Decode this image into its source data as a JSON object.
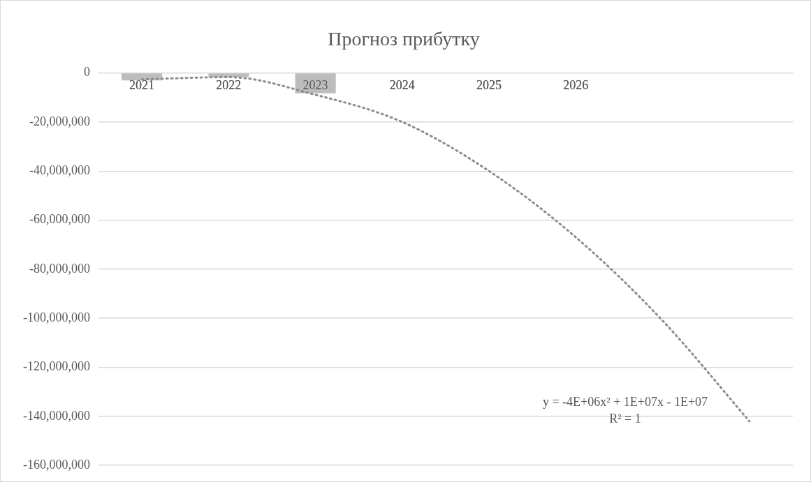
{
  "chart_data": {
    "type": "bar",
    "title": "Прогноз прибутку",
    "categories": [
      "2021",
      "2022",
      "2023",
      "2024",
      "2025",
      "2026",
      null,
      null
    ],
    "series": [
      {
        "color": "#bdbdbd",
        "values": [
          -3000000,
          -1700000,
          -8300000,
          null,
          null,
          null,
          null,
          null
        ]
      },
      {
        "type": "line",
        "color": "#8c8c8c",
        "line_style": "dotted",
        "marker": "none",
        "values": [
          -2600000,
          -1700000,
          -8900000,
          -20000000,
          -40000000,
          -67000000,
          -101000000,
          -142000000
        ]
      }
    ],
    "ylim": [
      -160000000,
      0
    ],
    "yticks": [
      {
        "value": -160000000,
        "label": "-160,000,000"
      },
      {
        "value": -140000000,
        "label": "-140,000,000"
      },
      {
        "value": -120000000,
        "label": "-120,000,000"
      },
      {
        "value": -100000000,
        "label": "-100,000,000"
      },
      {
        "value": -80000000,
        "label": "-80,000,000"
      },
      {
        "value": -60000000,
        "label": "-60,000,000"
      },
      {
        "value": -40000000,
        "label": "-40,000,000"
      },
      {
        "value": -20000000,
        "label": "-20,000,000"
      },
      {
        "value": 0,
        "label": "0"
      }
    ],
    "grid": "y",
    "legend": false,
    "annotations": [
      "y = -4E+06x² + 1E+07x - 1E+07",
      "R² = 1"
    ]
  }
}
